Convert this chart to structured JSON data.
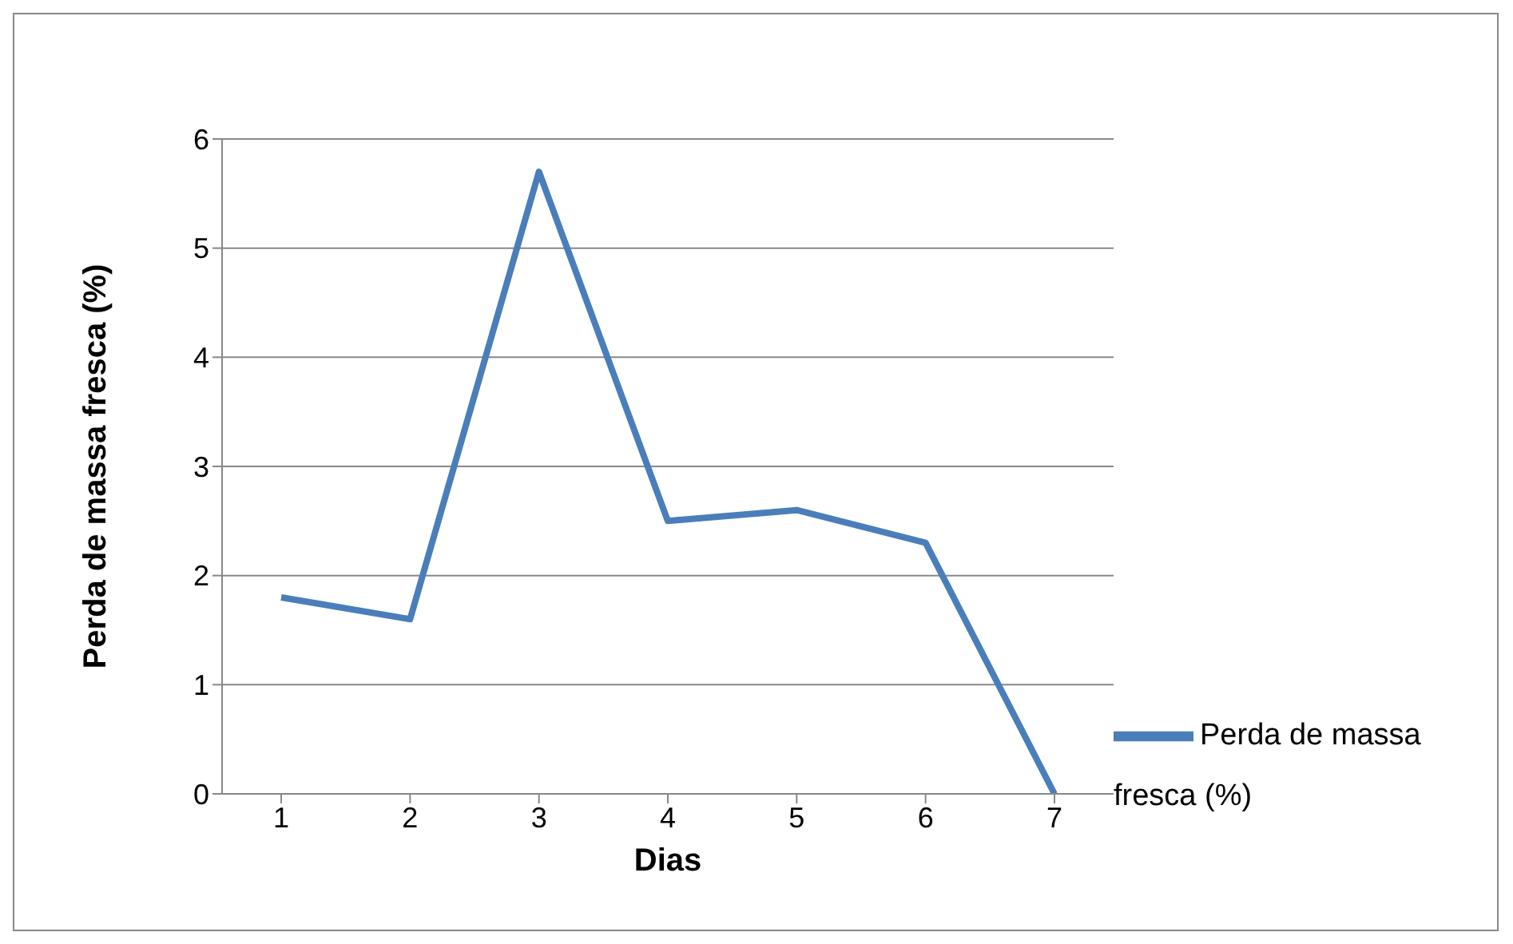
{
  "chart_data": {
    "type": "line",
    "xlabel": "Dias",
    "ylabel": "Perda de massa fresca (%)",
    "categories": [
      "1",
      "2",
      "3",
      "4",
      "5",
      "6",
      "7"
    ],
    "series": [
      {
        "name": "Perda de massa  fresca (%)",
        "color": "#4a7ebb",
        "values": [
          1.8,
          1.6,
          5.7,
          2.5,
          2.6,
          2.3,
          0
        ]
      }
    ],
    "ylim": [
      0,
      6
    ],
    "yticks": [
      0,
      1,
      2,
      3,
      4,
      5,
      6
    ],
    "grid": "y",
    "legend": "bottom right",
    "marker": "none",
    "line_style": "solid"
  }
}
